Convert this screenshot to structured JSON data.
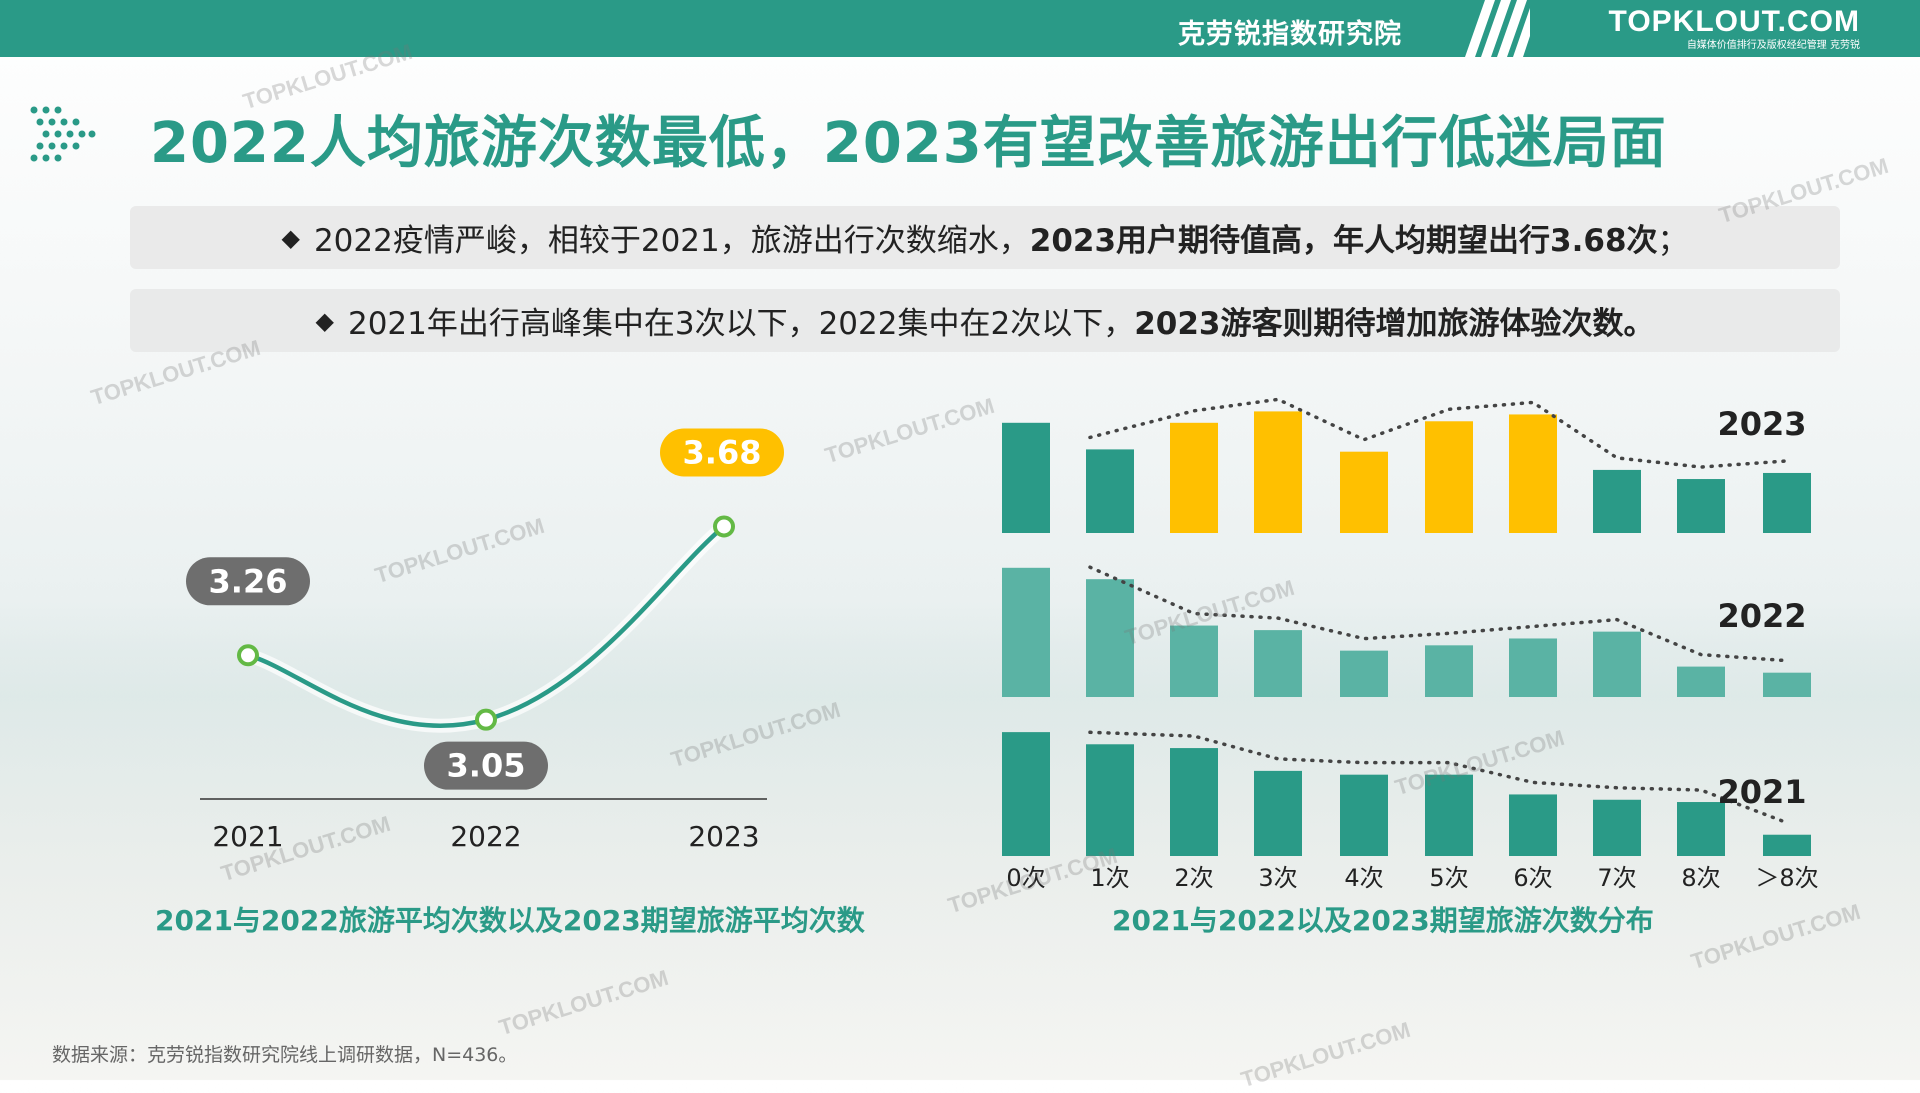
{
  "header": {
    "institute": "克劳锐指数研究院",
    "brand_name": "TOPKLOUT.COM",
    "brand_sub": "自媒体价值排行及版权经纪管理 克劳锐"
  },
  "title": "2022人均旅游次数最低，2023有望改善旅游出行低迷局面",
  "bullets": [
    {
      "marker": "◆",
      "plain": "2022疫情严峻，相较于2021，旅游出行次数缩水，",
      "bold": "2023用户期待值高，年人均期望出行3.68次",
      "tail": "；"
    },
    {
      "marker": "◆",
      "plain": "2021年出行高峰集中在3次以下，2022集中在2次以下，",
      "bold": "2023游客则期待增加旅游体验次数。",
      "tail": ""
    }
  ],
  "line_chart": {
    "caption": "2021与2022旅游平均次数以及2023期望旅游平均次数"
  },
  "bar_chart": {
    "caption": "2021与2022以及2023期望旅游次数分布"
  },
  "source_note": "数据来源：克劳锐指数研究院线上调研数据，N=436。",
  "watermark": "TOPKLOUT.COM",
  "colors": {
    "teal": "#2a9a87",
    "teal_light": "#5ab3a4",
    "yellow": "#ffc000",
    "gray_label": "#6e6e6e",
    "green_marker": "#63b945"
  },
  "chart_data": [
    {
      "type": "line",
      "categories": [
        "2021",
        "2022",
        "2023"
      ],
      "values": [
        3.26,
        3.05,
        3.68
      ],
      "data_labels": [
        "3.26",
        "3.05",
        "3.68"
      ],
      "highlight": "2023",
      "title": "",
      "xlabel": "",
      "ylabel": "",
      "grid": false
    },
    {
      "type": "bar",
      "categories": [
        "0次",
        "1次",
        "2次",
        "3次",
        "4次",
        "5次",
        "6次",
        "7次",
        "8次",
        "＞8次"
      ],
      "series": [
        {
          "name": "2023",
          "values": [
            14.5,
            11.0,
            14.5,
            16.0,
            10.7,
            14.7,
            15.6,
            8.3,
            7.1,
            7.9
          ],
          "highlighted": [
            "2次",
            "3次",
            "4次",
            "5次",
            "6次"
          ]
        },
        {
          "name": "2022",
          "values": [
            17.0,
            15.5,
            9.4,
            8.8,
            6.1,
            6.8,
            7.7,
            8.6,
            4.0,
            3.2
          ]
        },
        {
          "name": "2021",
          "values": [
            16.3,
            14.7,
            14.2,
            11.2,
            10.7,
            10.7,
            8.1,
            7.4,
            7.1,
            2.8
          ]
        }
      ],
      "trendline": "dotted",
      "title": "",
      "xlabel": "",
      "ylabel": "",
      "grid": false
    }
  ]
}
